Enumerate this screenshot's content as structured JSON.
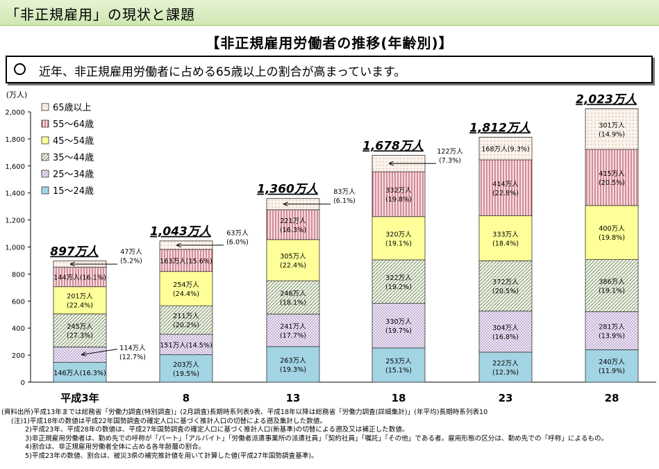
{
  "header": {
    "title": "「非正規雇用」の現状と課題"
  },
  "chart_title": "【非正規雇用労働者の推移(年齢別)】",
  "message": "近年、非正規雇用労働者に占める65歳以上の割合が高まっています。",
  "chart_data": {
    "type": "bar",
    "stacked": true,
    "ylabel": "(万人)",
    "ylim": [
      0,
      2000
    ],
    "yticks": [
      "0",
      "200",
      "400",
      "600",
      "800",
      "1,000",
      "1,200",
      "1,400",
      "1,600",
      "1,800",
      "2,000"
    ],
    "categories": [
      "平成3年",
      "8",
      "13",
      "18",
      "23",
      "28"
    ],
    "totals": [
      "897万人",
      "1,043万人",
      "1,360万人",
      "1,678万人",
      "1,812万人",
      "2,023万人"
    ],
    "series": [
      {
        "name": "15～24歳",
        "color": "#a3d4e4",
        "values": [
          146,
          203,
          263,
          253,
          222,
          240
        ],
        "labels": [
          "146万人(16.3%)",
          "203万人\n(19.5%)",
          "263万人\n(19.3%)",
          "253万人\n(15.1%)",
          "222万人\n(12.3%)",
          "240万人\n(11.9%)"
        ]
      },
      {
        "name": "25～34歳",
        "color": "#d8c7e6",
        "values": [
          114,
          151,
          241,
          330,
          304,
          281
        ],
        "labels": [
          "114万人\n(12.7%)",
          "151万人(14.5%)",
          "241万人\n(17.7%)",
          "330万人\n(19.7%)",
          "304万人\n(16.8%)",
          "281万人\n(13.9%)"
        ]
      },
      {
        "name": "35～44歳",
        "color": "#d6e7c3",
        "values": [
          245,
          211,
          246,
          322,
          372,
          386
        ],
        "labels": [
          "245万人\n(27.3%)",
          "211万人\n(20.2%)",
          "246万人\n(18.1%)",
          "322万人\n(19.2%)",
          "372万人\n(20.5%)",
          "386万人\n(19.1%)"
        ]
      },
      {
        "name": "45～54歳",
        "color": "#ffff99",
        "values": [
          201,
          254,
          305,
          320,
          333,
          400
        ],
        "labels": [
          "201万人\n(22.4%)",
          "254万人\n(24.4%)",
          "305万人\n(22.4%)",
          "320万人\n(19.1%)",
          "333万人\n(18.4%)",
          "400万人\n(19.8%)"
        ]
      },
      {
        "name": "55～64歳",
        "color": "#e8aab4",
        "values": [
          144,
          163,
          221,
          332,
          414,
          415
        ],
        "labels": [
          "144万人(16.1%)",
          "163万人(15.6%)",
          "221万人\n(16.3%)",
          "332万人\n(19.8%)",
          "414万人\n(22.8%)",
          "415万人\n(20.5%)"
        ]
      },
      {
        "name": "65歳以上",
        "color": "#f3e2d6",
        "values": [
          47,
          63,
          83,
          122,
          168,
          301
        ],
        "labels": [
          "47万人\n(5.2%)",
          "63万人\n(6.0%)",
          "83万人\n(6.1%)",
          "122万人\n(7.3%)",
          "168万人(9.3%)",
          "301万人\n(14.9%)"
        ]
      }
    ]
  },
  "notes": [
    "(資料出所)平成13年までは総務省「労働力調査(特別調査)」(2月調査)長期時系列表9表、平成18年以降は総務省「労働力調査(詳細集計)」(年平均)長期時系列表10",
    "(注)1)平成18年の数値は平成22年国勢調査の確定人口に基づく推計人口の切替による遡及集計した数値。",
    "2)平成23年、平成28年の数値は、平成27年国勢調査の確定人口に基づく推計人口(新基準)の切替による遡及又は補正した数値。",
    "3)非正規雇用労働者は、勤め先での呼称が「パート」「アルバイト」「労働者派遣事業所の派遣社員」「契約社員」「嘱託」「その他」である者。雇用形態の区分は、勤め先での「呼称」によるもの。",
    "4)割合は、非正規雇用労働者全体に占める各年齢層の割合。",
    "5)平成23年の数値、割合は、被災3県の補完推計値を用いて計算した値(平成27年国勢調査基準)。"
  ]
}
